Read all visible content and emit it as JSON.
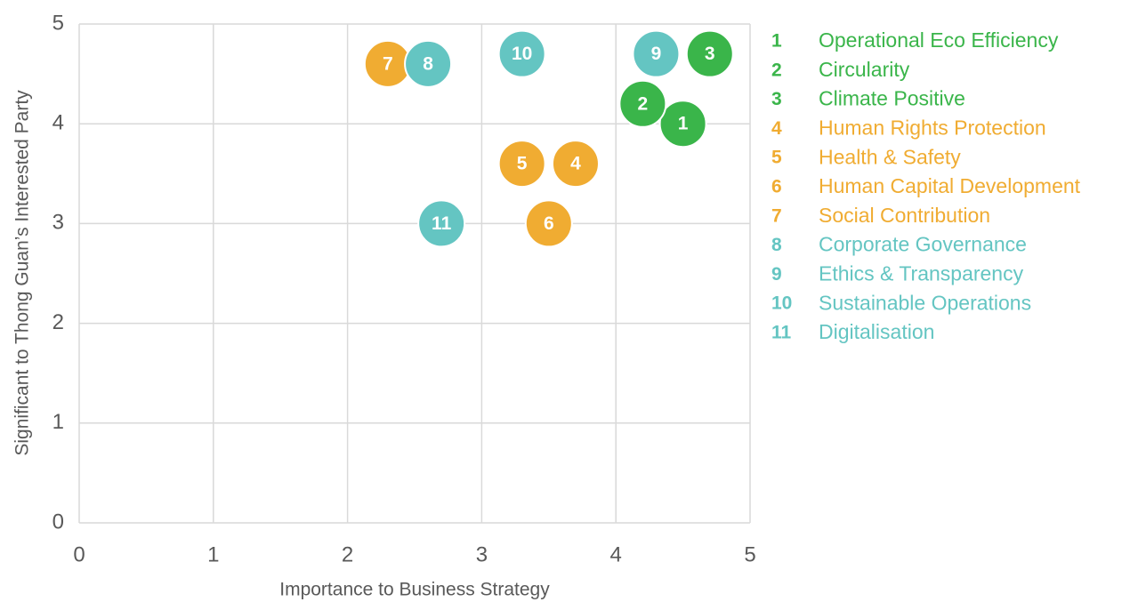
{
  "chart_data": {
    "type": "scatter",
    "x_label": "Importance to Business Strategy",
    "y_label": "Significant to Thong Guan’s Interested Party",
    "xlim": [
      0,
      5
    ],
    "ylim": [
      0,
      5
    ],
    "xticks": [
      0,
      1,
      2,
      3,
      4,
      5
    ],
    "yticks": [
      0,
      1,
      2,
      3,
      4,
      5
    ],
    "grid": true,
    "legend": "right",
    "points": [
      {
        "label": "1",
        "name": "Operational Eco Efficiency",
        "x": 4.5,
        "y": 4.0,
        "color": "#3ab54a"
      },
      {
        "label": "2",
        "name": "Circularity",
        "x": 4.2,
        "y": 4.2,
        "color": "#3ab54a"
      },
      {
        "label": "3",
        "name": "Climate Positive",
        "x": 4.7,
        "y": 4.7,
        "color": "#3ab54a"
      },
      {
        "label": "4",
        "name": "Human Rights Protection",
        "x": 3.7,
        "y": 3.6,
        "color": "#f0ac32"
      },
      {
        "label": "5",
        "name": "Health & Safety",
        "x": 3.3,
        "y": 3.6,
        "color": "#f0ac32"
      },
      {
        "label": "6",
        "name": "Human Capital Development",
        "x": 3.5,
        "y": 3.0,
        "color": "#f0ac32"
      },
      {
        "label": "7",
        "name": "Social Contribution",
        "x": 2.3,
        "y": 4.6,
        "color": "#f0ac32"
      },
      {
        "label": "8",
        "name": "Corporate Governance",
        "x": 2.6,
        "y": 4.6,
        "color": "#64c5c2"
      },
      {
        "label": "9",
        "name": "Ethics & Transparency",
        "x": 4.3,
        "y": 4.7,
        "color": "#64c5c2"
      },
      {
        "label": "10",
        "name": "Sustainable Operations",
        "x": 3.3,
        "y": 4.7,
        "color": "#64c5c2"
      },
      {
        "label": "11",
        "name": "Digitalisation",
        "x": 2.7,
        "y": 3.0,
        "color": "#64c5c2"
      }
    ]
  }
}
